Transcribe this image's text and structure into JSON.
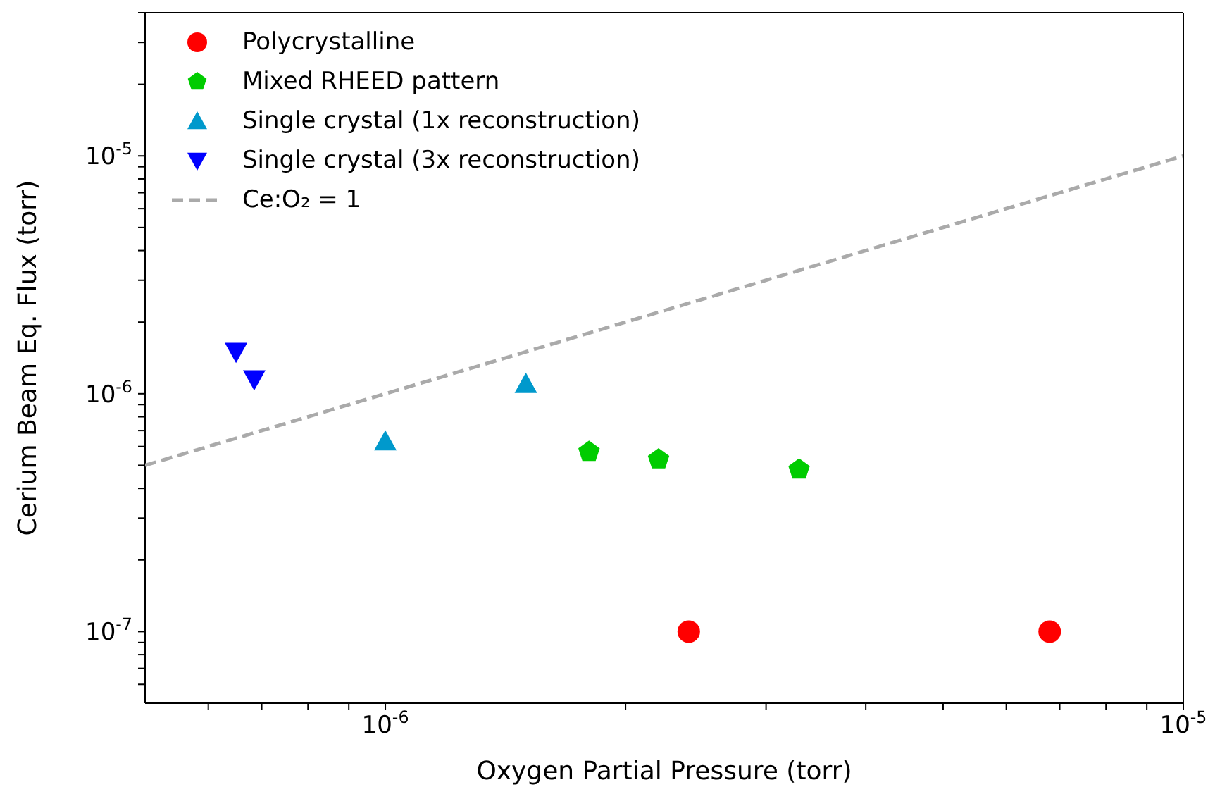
{
  "chart_data": {
    "type": "scatter",
    "xlabel": "Oxygen Partial Pressure (torr)",
    "ylabel": "Cerium Beam Eq. Flux (torr)",
    "log": "xy",
    "legend": "top left",
    "xlim": [
      5e-07,
      1e-05
    ],
    "ylim": [
      5e-08,
      4e-05
    ],
    "xticks": [
      {
        "value": 6e-07,
        "label": null
      },
      {
        "value": 7e-07,
        "label": null
      },
      {
        "value": 8e-07,
        "label": null
      },
      {
        "value": 9e-07,
        "label": null
      },
      {
        "value": 1e-06,
        "label": "10$^{-6}$"
      },
      {
        "value": 2e-06,
        "label": null
      },
      {
        "value": 3e-06,
        "label": null
      },
      {
        "value": 4e-06,
        "label": null
      },
      {
        "value": 5e-06,
        "label": null
      },
      {
        "value": 6e-06,
        "label": null
      },
      {
        "value": 7e-06,
        "label": null
      },
      {
        "value": 8e-06,
        "label": null
      },
      {
        "value": 9e-06,
        "label": null
      },
      {
        "value": 1e-05,
        "label": "10$^{-5}$"
      }
    ],
    "yticks": [
      {
        "value": 6e-08,
        "label": null
      },
      {
        "value": 7e-08,
        "label": null
      },
      {
        "value": 8e-08,
        "label": null
      },
      {
        "value": 9e-08,
        "label": null
      },
      {
        "value": 1e-07,
        "label": "10$^{-7}$"
      },
      {
        "value": 2e-07,
        "label": null
      },
      {
        "value": 3e-07,
        "label": null
      },
      {
        "value": 4e-07,
        "label": null
      },
      {
        "value": 5e-07,
        "label": null
      },
      {
        "value": 6e-07,
        "label": null
      },
      {
        "value": 7e-07,
        "label": null
      },
      {
        "value": 8e-07,
        "label": null
      },
      {
        "value": 9e-07,
        "label": null
      },
      {
        "value": 1e-06,
        "label": "10$^{-6}$"
      },
      {
        "value": 2e-06,
        "label": null
      },
      {
        "value": 3e-06,
        "label": null
      },
      {
        "value": 4e-06,
        "label": null
      },
      {
        "value": 5e-06,
        "label": null
      },
      {
        "value": 6e-06,
        "label": null
      },
      {
        "value": 7e-06,
        "label": null
      },
      {
        "value": 8e-06,
        "label": null
      },
      {
        "value": 9e-06,
        "label": null
      },
      {
        "value": 1e-05,
        "label": "10$^{-5}$"
      },
      {
        "value": 2e-05,
        "label": null
      },
      {
        "value": 3e-05,
        "label": null
      },
      {
        "value": 4e-05,
        "label": null
      }
    ],
    "series": [
      {
        "name": "Polycrystalline",
        "color": "#ff0000",
        "marker": "circle",
        "x": [
          2.4e-06,
          6.8e-06
        ],
        "values": [
          1e-07,
          1e-07
        ]
      },
      {
        "name": "Mixed RHEED pattern",
        "color": "#00cc00",
        "x": [
          1.8e-06,
          2.2e-06,
          3.3e-06
        ],
        "values": [
          5.7e-07,
          5.3e-07,
          4.8e-07
        ]
      },
      {
        "name": "Single crystal (1x reconstruction)",
        "color": "#0099cc",
        "marker": "triangle",
        "x": [
          1e-06,
          1.5e-06
        ],
        "values": [
          6.3e-07,
          1.1e-06
        ]
      },
      {
        "name": "Single crystal (3x reconstruction)",
        "color": "#0000ff",
        "marker": "triangle-down",
        "x": [
          6.5e-07,
          6.85e-07
        ],
        "values": [
          1.5e-06,
          1.15e-06
        ]
      },
      {
        "name": "Ce:O₂ = 1",
        "type": "line",
        "color": "#aaaaaa",
        "line_style": "dashed",
        "marker": "none",
        "x": [
          5e-07,
          1e-05
        ],
        "values": [
          5e-07,
          1e-05
        ]
      }
    ]
  }
}
